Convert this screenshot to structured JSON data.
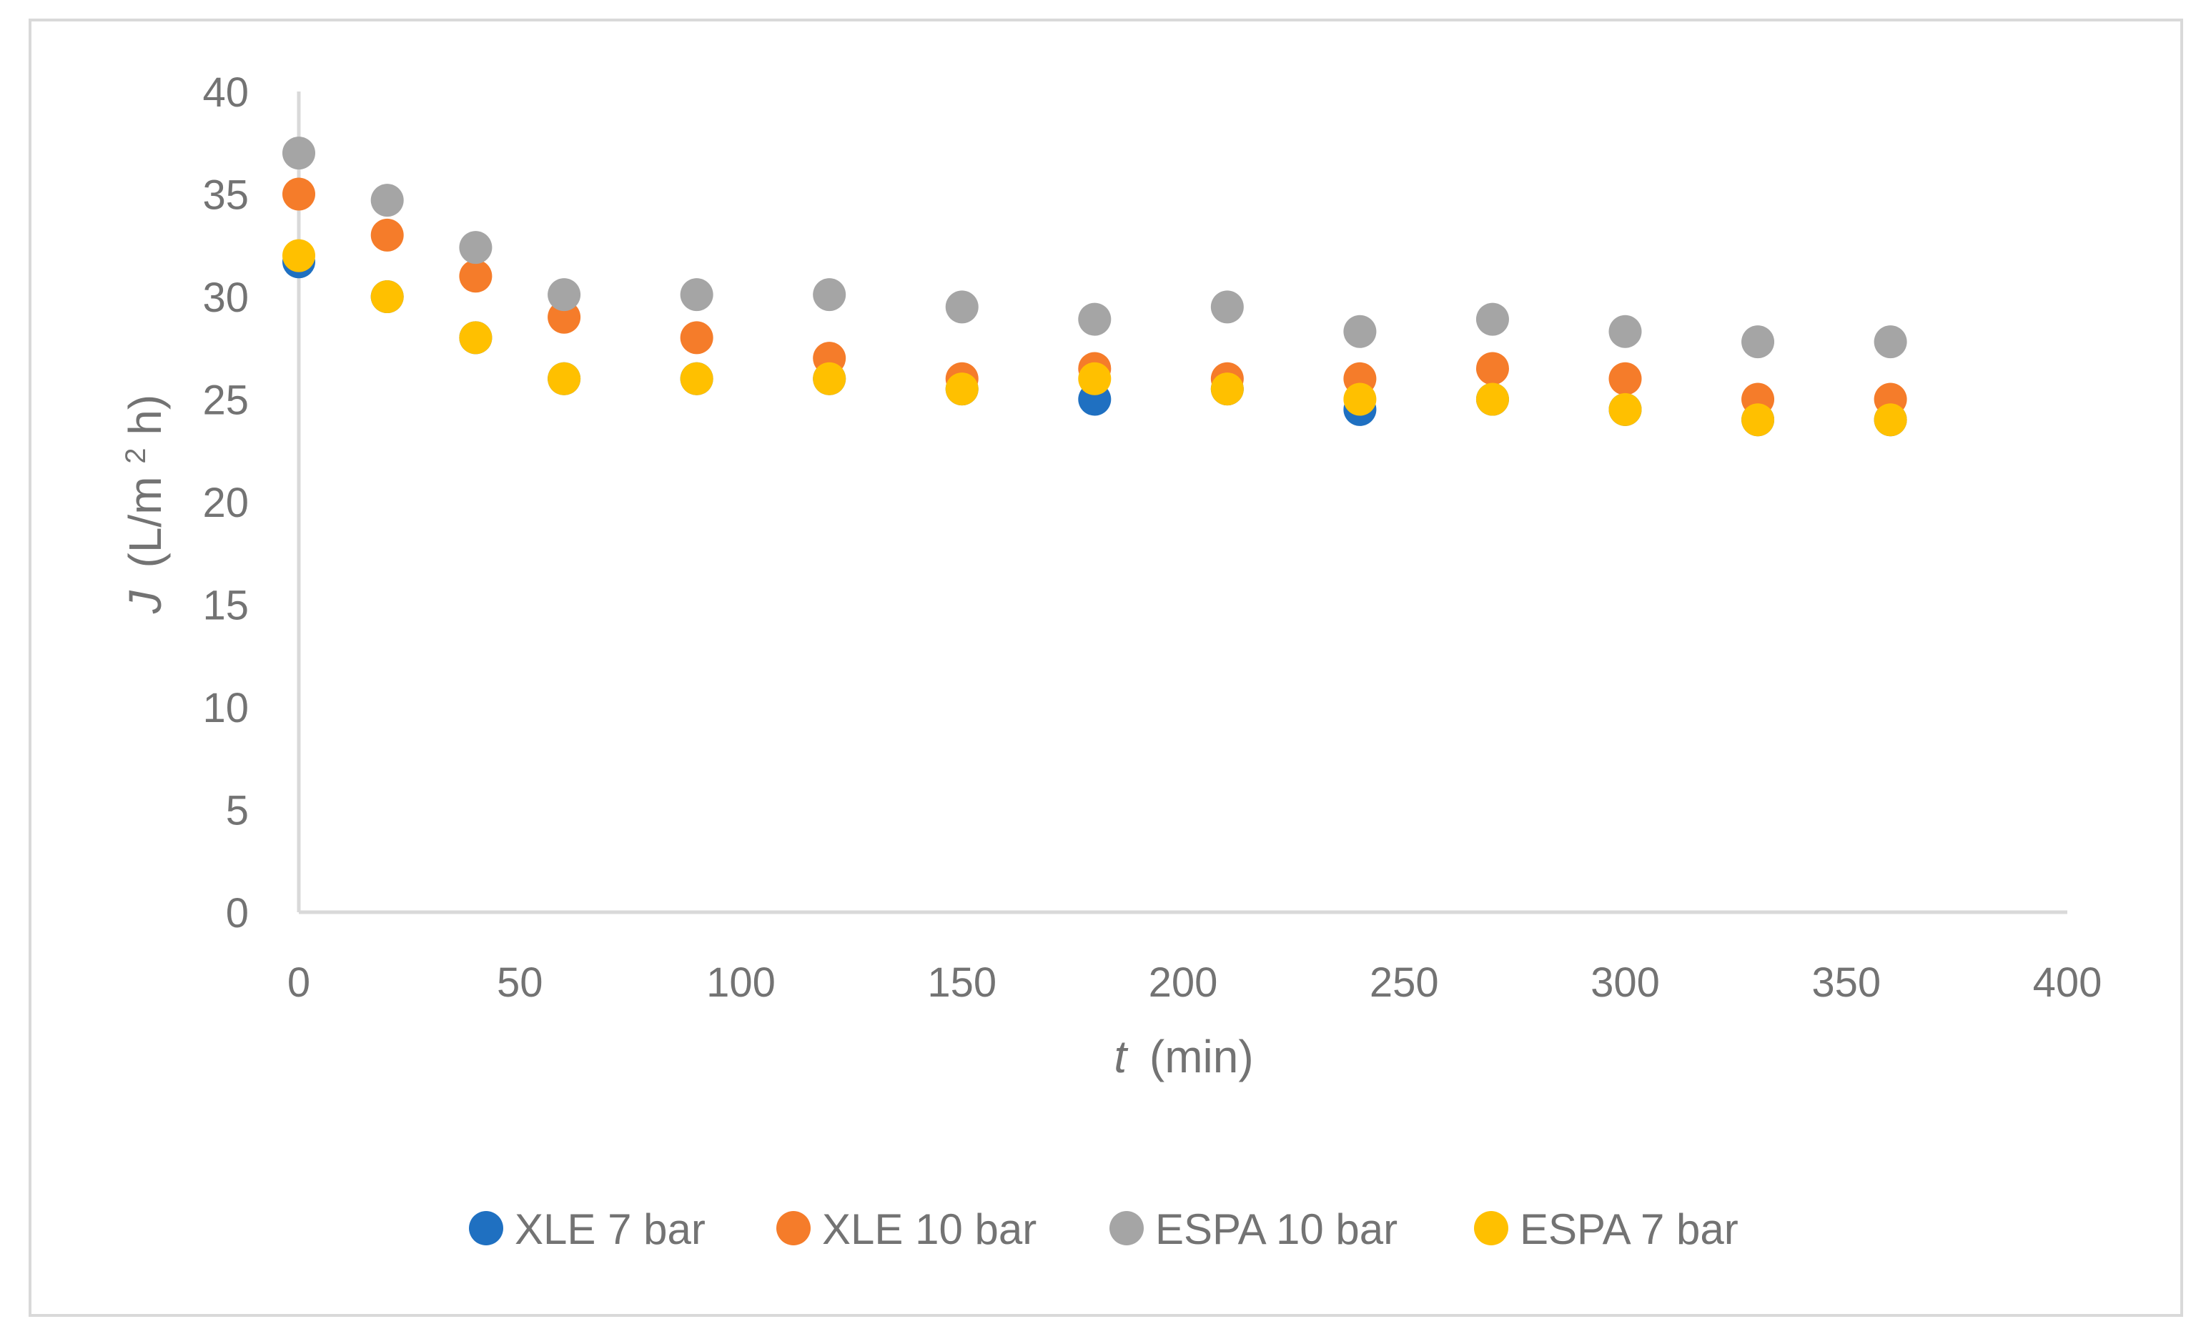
{
  "chart_data": {
    "type": "scatter",
    "title": "",
    "xlabel_italic": "t",
    "xlabel_unit": "(min)",
    "ylabel_italic": "J",
    "ylabel_unit_pre": "(L/m",
    "ylabel_unit_sup": "2",
    "ylabel_unit_post": "h)",
    "xlim": [
      0,
      400
    ],
    "ylim": [
      0,
      40
    ],
    "x_ticks": [
      0,
      50,
      100,
      150,
      200,
      250,
      300,
      350,
      400
    ],
    "y_ticks": [
      0,
      5,
      10,
      15,
      20,
      25,
      30,
      35,
      40
    ],
    "x_tick_labels": [
      "0",
      "50",
      "100",
      "150",
      "200",
      "250",
      "300",
      "350",
      "400"
    ],
    "y_tick_labels": [
      "0",
      "5",
      "10",
      "15",
      "20",
      "25",
      "30",
      "35",
      "40"
    ],
    "grid": false,
    "legend_position": "bottom",
    "x": [
      0,
      20,
      40,
      60,
      90,
      120,
      150,
      180,
      210,
      240,
      270,
      300,
      330,
      360
    ],
    "series": [
      {
        "name": "XLE 7 bar",
        "color": "#1f70c1",
        "values": [
          31.7,
          30,
          28,
          26,
          26,
          26,
          25.5,
          25,
          25.5,
          24.5,
          25,
          24.5,
          24,
          24
        ]
      },
      {
        "name": "XLE 10 bar",
        "color": "#f57c2a",
        "values": [
          35,
          33,
          31,
          29,
          28,
          27,
          26,
          26.5,
          26,
          26,
          26.5,
          26,
          25,
          25
        ]
      },
      {
        "name": "ESPA 10 bar",
        "color": "#a5a5a5",
        "values": [
          37,
          34.7,
          32.4,
          30.1,
          30.1,
          30.1,
          29.5,
          28.9,
          29.5,
          28.3,
          28.9,
          28.3,
          27.8,
          27.8
        ]
      },
      {
        "name": "ESPA 7 bar",
        "color": "#ffc000",
        "values": [
          32,
          30,
          28,
          26,
          26,
          26,
          25.5,
          26,
          25.5,
          25,
          25,
          24.5,
          24,
          24
        ]
      }
    ]
  }
}
